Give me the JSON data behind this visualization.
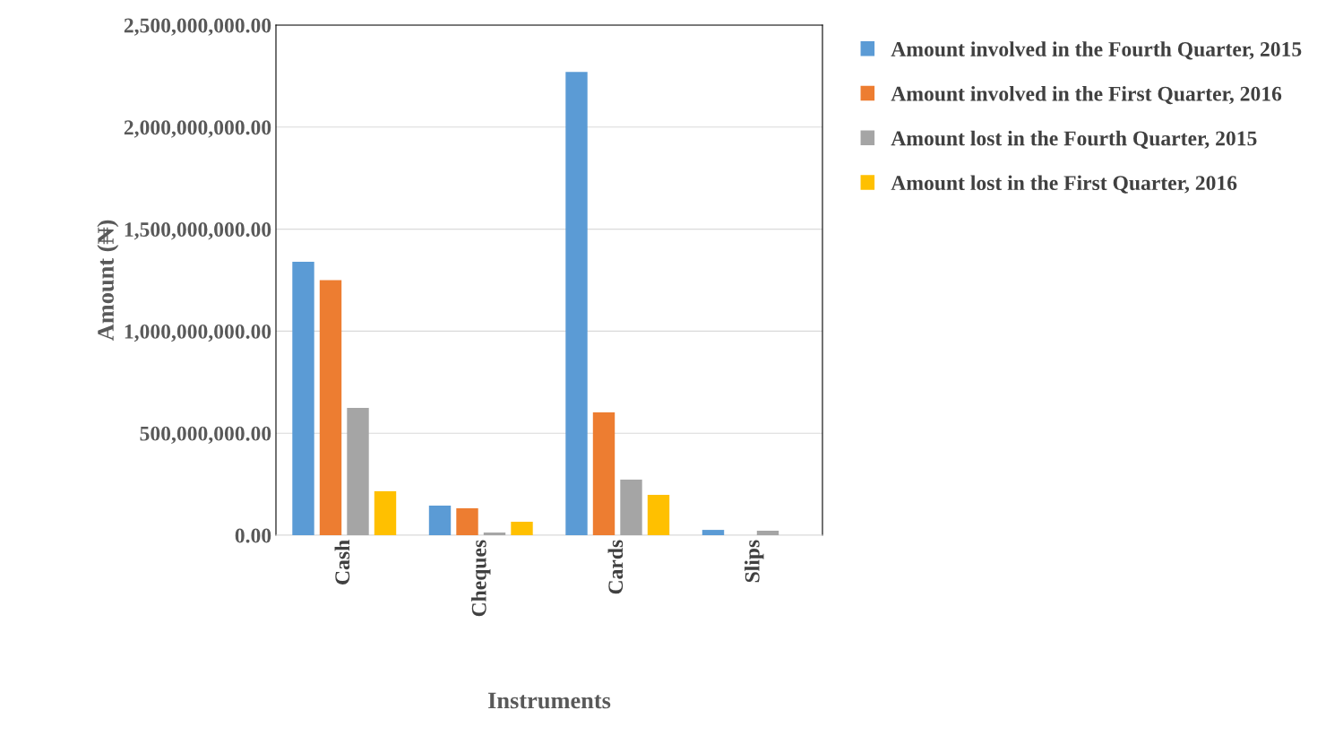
{
  "chart_data": {
    "type": "bar",
    "xlabel": "Instruments",
    "ylabel": "Amount (₦)",
    "categories": [
      "Cash",
      "Cheques",
      "Cards",
      "Slips"
    ],
    "series": [
      {
        "name": "Amount involved in the Fourth Quarter, 2015",
        "color": "#5b9bd5",
        "values": [
          1340000000,
          145000000,
          2270000000,
          26000000
        ]
      },
      {
        "name": "Amount involved in the First Quarter, 2016",
        "color": "#ed7d31",
        "values": [
          1250000000,
          132000000,
          602000000,
          0
        ]
      },
      {
        "name": "Amount lost in the Fourth Quarter, 2015",
        "color": "#a5a5a5",
        "values": [
          624000000,
          13000000,
          272000000,
          22000000
        ]
      },
      {
        "name": "Amount lost in the First Quarter, 2016",
        "color": "#ffc000",
        "values": [
          215000000,
          66000000,
          198000000,
          0
        ]
      }
    ],
    "ylim": [
      0,
      2500000000
    ],
    "yticks": [
      {
        "value": 0,
        "label": "0.00"
      },
      {
        "value": 500000000,
        "label": "500,000,000.00"
      },
      {
        "value": 1000000000,
        "label": "1,000,000,000.00"
      },
      {
        "value": 1500000000,
        "label": "1,500,000,000.00"
      },
      {
        "value": 2000000000,
        "label": "2,000,000,000.00"
      },
      {
        "value": 2500000000,
        "label": "2,500,000,000.00"
      }
    ],
    "grid": "y",
    "legend": "top right"
  }
}
